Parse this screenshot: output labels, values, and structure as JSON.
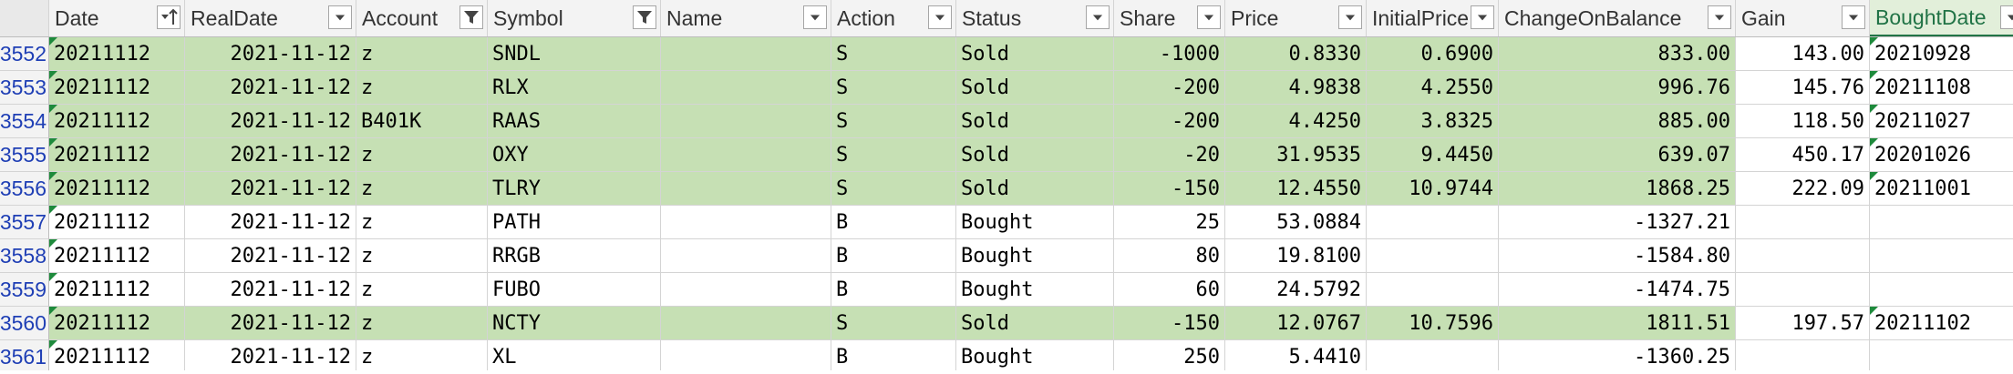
{
  "columns": [
    {
      "key": "date",
      "label": "Date",
      "filter": "sorted"
    },
    {
      "key": "realdate",
      "label": "RealDate",
      "filter": "dropdown"
    },
    {
      "key": "account",
      "label": "Account",
      "filter": "filtered"
    },
    {
      "key": "symbol",
      "label": "Symbol",
      "filter": "filtered"
    },
    {
      "key": "name",
      "label": "Name",
      "filter": "dropdown"
    },
    {
      "key": "action",
      "label": "Action",
      "filter": "dropdown"
    },
    {
      "key": "status",
      "label": "Status",
      "filter": "dropdown"
    },
    {
      "key": "share",
      "label": "Share",
      "filter": "dropdown"
    },
    {
      "key": "price",
      "label": "Price",
      "filter": "dropdown"
    },
    {
      "key": "initialprice",
      "label": "InitialPrice",
      "filter": "dropdown"
    },
    {
      "key": "changeonbalance",
      "label": "ChangeOnBalance",
      "filter": "dropdown"
    },
    {
      "key": "gain",
      "label": "Gain",
      "filter": "dropdown"
    },
    {
      "key": "boughtdate",
      "label": "BoughtDate",
      "filter": "dropdown",
      "selected": true
    }
  ],
  "rows": [
    {
      "row": "3552",
      "date": "20211112",
      "realdate": "2021-11-12",
      "account": "z",
      "symbol": "SNDL",
      "name": "",
      "action": "S",
      "status": "Sold",
      "share": "-1000",
      "price": "0.8330",
      "initialprice": "0.6900",
      "changeonbalance": "833.00",
      "gain": "143.00",
      "boughtdate": "20210928",
      "highlight": true
    },
    {
      "row": "3553",
      "date": "20211112",
      "realdate": "2021-11-12",
      "account": "z",
      "symbol": "RLX",
      "name": "",
      "action": "S",
      "status": "Sold",
      "share": "-200",
      "price": "4.9838",
      "initialprice": "4.2550",
      "changeonbalance": "996.76",
      "gain": "145.76",
      "boughtdate": "20211108",
      "highlight": true
    },
    {
      "row": "3554",
      "date": "20211112",
      "realdate": "2021-11-12",
      "account": "B401K",
      "symbol": "RAAS",
      "name": "",
      "action": "S",
      "status": "Sold",
      "share": "-200",
      "price": "4.4250",
      "initialprice": "3.8325",
      "changeonbalance": "885.00",
      "gain": "118.50",
      "boughtdate": "20211027",
      "highlight": true
    },
    {
      "row": "3555",
      "date": "20211112",
      "realdate": "2021-11-12",
      "account": "z",
      "symbol": "OXY",
      "name": "",
      "action": "S",
      "status": "Sold",
      "share": "-20",
      "price": "31.9535",
      "initialprice": "9.4450",
      "changeonbalance": "639.07",
      "gain": "450.17",
      "boughtdate": "20201026",
      "highlight": true
    },
    {
      "row": "3556",
      "date": "20211112",
      "realdate": "2021-11-12",
      "account": "z",
      "symbol": "TLRY",
      "name": "",
      "action": "S",
      "status": "Sold",
      "share": "-150",
      "price": "12.4550",
      "initialprice": "10.9744",
      "changeonbalance": "1868.25",
      "gain": "222.09",
      "boughtdate": "20211001",
      "highlight": true
    },
    {
      "row": "3557",
      "date": "20211112",
      "realdate": "2021-11-12",
      "account": "z",
      "symbol": "PATH",
      "name": "",
      "action": "B",
      "status": "Bought",
      "share": "25",
      "price": "53.0884",
      "initialprice": "",
      "changeonbalance": "-1327.21",
      "gain": "",
      "boughtdate": "",
      "highlight": false
    },
    {
      "row": "3558",
      "date": "20211112",
      "realdate": "2021-11-12",
      "account": "z",
      "symbol": "RRGB",
      "name": "",
      "action": "B",
      "status": "Bought",
      "share": "80",
      "price": "19.8100",
      "initialprice": "",
      "changeonbalance": "-1584.80",
      "gain": "",
      "boughtdate": "",
      "highlight": false
    },
    {
      "row": "3559",
      "date": "20211112",
      "realdate": "2021-11-12",
      "account": "z",
      "symbol": "FUBO",
      "name": "",
      "action": "B",
      "status": "Bought",
      "share": "60",
      "price": "24.5792",
      "initialprice": "",
      "changeonbalance": "-1474.75",
      "gain": "",
      "boughtdate": "",
      "highlight": false
    },
    {
      "row": "3560",
      "date": "20211112",
      "realdate": "2021-11-12",
      "account": "z",
      "symbol": "NCTY",
      "name": "",
      "action": "S",
      "status": "Sold",
      "share": "-150",
      "price": "12.0767",
      "initialprice": "10.7596",
      "changeonbalance": "1811.51",
      "gain": "197.57",
      "boughtdate": "20211102",
      "highlight": true
    },
    {
      "row": "3561",
      "date": "20211112",
      "realdate": "2021-11-12",
      "account": "z",
      "symbol": "XL",
      "name": "",
      "action": "B",
      "status": "Bought",
      "share": "250",
      "price": "5.4410",
      "initialprice": "",
      "changeonbalance": "-1360.25",
      "gain": "",
      "boughtdate": "",
      "highlight": false
    }
  ],
  "colors": {
    "highlight": "#c6e0b4",
    "header": "#f3f3f3",
    "rownum": "#1f3fb5",
    "selected_header": "#217346"
  }
}
